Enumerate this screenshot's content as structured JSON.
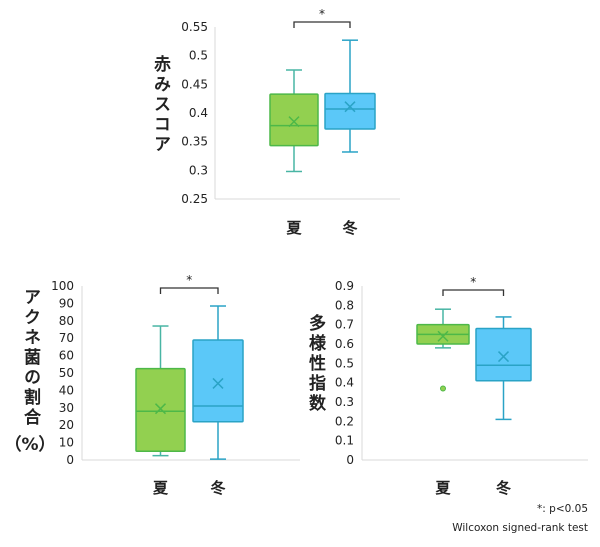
{
  "colors": {
    "summer_fill": "#92D050",
    "summer_stroke": "#4DB848",
    "winter_fill": "#5BC8F8",
    "winter_stroke": "#2AA3C6",
    "whisker": "#48B5A4",
    "axis": "#D9D9D9"
  },
  "footnote": {
    "significance": "*: p<0.05",
    "test": "Wilcoxon signed-rank test"
  },
  "chart_data": [
    {
      "type": "box",
      "ylabel": "赤みスコア",
      "categories": [
        "夏",
        "冬"
      ],
      "ylim": [
        0.25,
        0.55
      ],
      "yticks": [
        "0.55",
        "0.5",
        "0.45",
        "0.4",
        "0.35",
        "0.3",
        "0.25"
      ],
      "significance": "*",
      "series": [
        {
          "category": "夏",
          "min": 0.298,
          "q1": 0.343,
          "median": 0.378,
          "q3": 0.433,
          "max": 0.475,
          "mean": 0.385,
          "outliers": []
        },
        {
          "category": "冬",
          "min": 0.332,
          "q1": 0.372,
          "median": 0.407,
          "q3": 0.434,
          "max": 0.527,
          "mean": 0.411,
          "outliers": []
        }
      ]
    },
    {
      "type": "box",
      "ylabel": "アクネ菌の割合",
      "ylabel_unit": "（%）",
      "categories": [
        "夏",
        "冬"
      ],
      "ylim": [
        0,
        100
      ],
      "yticks": [
        "100",
        "90",
        "80",
        "70",
        "60",
        "50",
        "40",
        "30",
        "20",
        "10",
        "0"
      ],
      "significance": "*",
      "series": [
        {
          "category": "夏",
          "min": 2.5,
          "q1": 5,
          "median": 28,
          "q3": 52.5,
          "max": 77,
          "mean": 29.5,
          "outliers": []
        },
        {
          "category": "冬",
          "min": 0.5,
          "q1": 22,
          "median": 31,
          "q3": 69,
          "max": 88.5,
          "mean": 44,
          "outliers": []
        }
      ]
    },
    {
      "type": "box",
      "ylabel": "多様性指数",
      "categories": [
        "夏",
        "冬"
      ],
      "ylim": [
        0,
        0.9
      ],
      "yticks": [
        "0.9",
        "0.8",
        "0.7",
        "0.6",
        "0.5",
        "0.4",
        "0.3",
        "0.2",
        "0.1",
        "0"
      ],
      "significance": "*",
      "series": [
        {
          "category": "夏",
          "min": 0.58,
          "q1": 0.6,
          "median": 0.65,
          "q3": 0.7,
          "max": 0.78,
          "mean": 0.64,
          "outliers": [
            0.37
          ]
        },
        {
          "category": "冬",
          "min": 0.21,
          "q1": 0.41,
          "median": 0.49,
          "q3": 0.68,
          "max": 0.74,
          "mean": 0.535,
          "outliers": []
        }
      ]
    }
  ]
}
